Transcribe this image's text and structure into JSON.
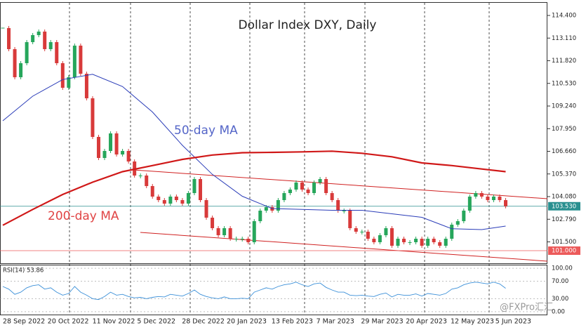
{
  "chart_data": {
    "type": "candlestick",
    "title": "Dollar Index DXY, Daily",
    "x_labels": [
      "28 Sep 2022",
      "20 Oct 2022",
      "11 Nov 2022",
      "5 Dec 2022",
      "28 Dec 2022",
      "20 Jan 2023",
      "13 Feb 2023",
      "7 Mar 2023",
      "29 Mar 2023",
      "20 Apr 2023",
      "12 May 2023",
      "5 Jun 2023"
    ],
    "series": [
      {
        "name": "DXY",
        "up_color": "#26a65b",
        "down_color": "#d83a3a",
        "values": [
          113.68,
          112.48,
          110.88,
          111.68,
          112.88,
          113.28,
          113.48,
          112.48,
          112.88,
          111.68,
          110.28,
          110.88,
          112.68,
          111.08,
          109.68,
          107.48,
          106.28,
          106.68,
          107.68,
          106.48,
          106.68,
          106.08,
          105.28,
          105.28,
          104.68,
          104.08,
          103.88,
          103.68,
          104.08,
          103.88,
          103.68,
          104.28,
          105.08,
          103.88,
          102.88,
          102.28,
          101.88,
          102.28,
          101.68,
          101.68,
          101.68,
          101.48,
          102.68,
          103.28,
          103.48,
          103.28,
          103.88,
          104.28,
          104.48,
          104.88,
          104.48,
          104.28,
          104.88,
          105.08,
          104.28,
          103.88,
          103.28,
          103.28,
          102.28,
          102.08,
          102.08,
          101.68,
          101.48,
          101.88,
          102.28,
          101.28,
          101.68,
          101.48,
          101.48,
          101.68,
          101.28,
          101.68,
          101.48,
          101.28,
          101.68,
          102.48,
          102.68,
          103.28,
          104.08,
          104.28,
          104.08,
          103.88,
          104.08,
          103.88,
          103.53
        ]
      }
    ],
    "lines": [
      {
        "name": "50-day MA",
        "color": "#2a3cb8",
        "label_color": "#5566c8",
        "x": [
          0,
          5,
          10,
          15,
          20,
          25,
          30,
          35,
          40,
          45,
          50,
          55,
          60,
          65,
          70,
          75,
          80,
          84
        ],
        "values": [
          108.4,
          109.8,
          110.75,
          111.05,
          110.35,
          108.9,
          107.0,
          105.35,
          104.1,
          103.4,
          103.35,
          103.3,
          103.3,
          103.1,
          102.9,
          102.25,
          102.2,
          102.4
        ]
      },
      {
        "name": "200-day MA",
        "color": "#d01818",
        "label_color": "#e04444",
        "x": [
          0,
          5,
          10,
          15,
          20,
          25,
          30,
          35,
          40,
          45,
          50,
          55,
          60,
          65,
          70,
          75,
          80,
          84
        ],
        "values": [
          102.45,
          103.35,
          104.2,
          104.9,
          105.5,
          105.85,
          106.2,
          106.45,
          106.58,
          106.6,
          106.63,
          106.67,
          106.55,
          106.35,
          106.0,
          105.85,
          105.65,
          105.5
        ]
      }
    ],
    "ylim": [
      100.28,
      115.12
    ],
    "yticks": [
      {
        "value": 114.4,
        "label": "114.400"
      },
      {
        "value": 113.11,
        "label": "113.110"
      },
      {
        "value": 111.82,
        "label": "111.820"
      },
      {
        "value": 110.53,
        "label": "110.530"
      },
      {
        "value": 109.24,
        "label": "109.240"
      },
      {
        "value": 107.95,
        "label": "107.950"
      },
      {
        "value": 106.66,
        "label": "106.660"
      },
      {
        "value": 105.37,
        "label": "105.370"
      },
      {
        "value": 104.08,
        "label": "104.080"
      },
      {
        "value": 102.79,
        "label": "102.790"
      },
      {
        "value": 101.5,
        "label": "101.500"
      }
    ],
    "levels": [
      {
        "value": 103.53,
        "label": "103.530",
        "color": "#2a9090"
      },
      {
        "value": 101,
        "label": "101.000",
        "color": "#ec5a5a"
      }
    ],
    "rsi": {
      "label": "RSI(14) 53.86",
      "color": "#3a8fd8",
      "ylim": [
        -6.5,
        106.5
      ],
      "yticks": [
        {
          "value": 100,
          "label": "100.00"
        },
        {
          "value": 70,
          "label": "70.00"
        },
        {
          "value": 30,
          "label": "30.00"
        },
        {
          "value": 0,
          "label": "0.00"
        }
      ],
      "values": [
        58,
        52,
        40,
        45,
        55,
        60,
        62,
        52,
        55,
        45,
        38,
        42,
        58,
        45,
        38,
        30,
        28,
        35,
        45,
        38,
        40,
        35,
        32,
        33,
        30,
        33,
        35,
        34,
        40,
        38,
        36,
        42,
        50,
        40,
        35,
        32,
        30,
        34,
        30,
        30,
        31,
        30,
        45,
        50,
        55,
        52,
        58,
        62,
        64,
        68,
        62,
        58,
        64,
        66,
        56,
        50,
        45,
        45,
        38,
        37,
        38,
        36,
        35,
        40,
        43,
        34,
        40,
        38,
        38,
        41,
        36,
        42,
        40,
        38,
        42,
        52,
        55,
        62,
        66,
        68,
        66,
        64,
        68,
        64,
        53.86
      ]
    },
    "watermark": "@FXPro汇汇"
  }
}
